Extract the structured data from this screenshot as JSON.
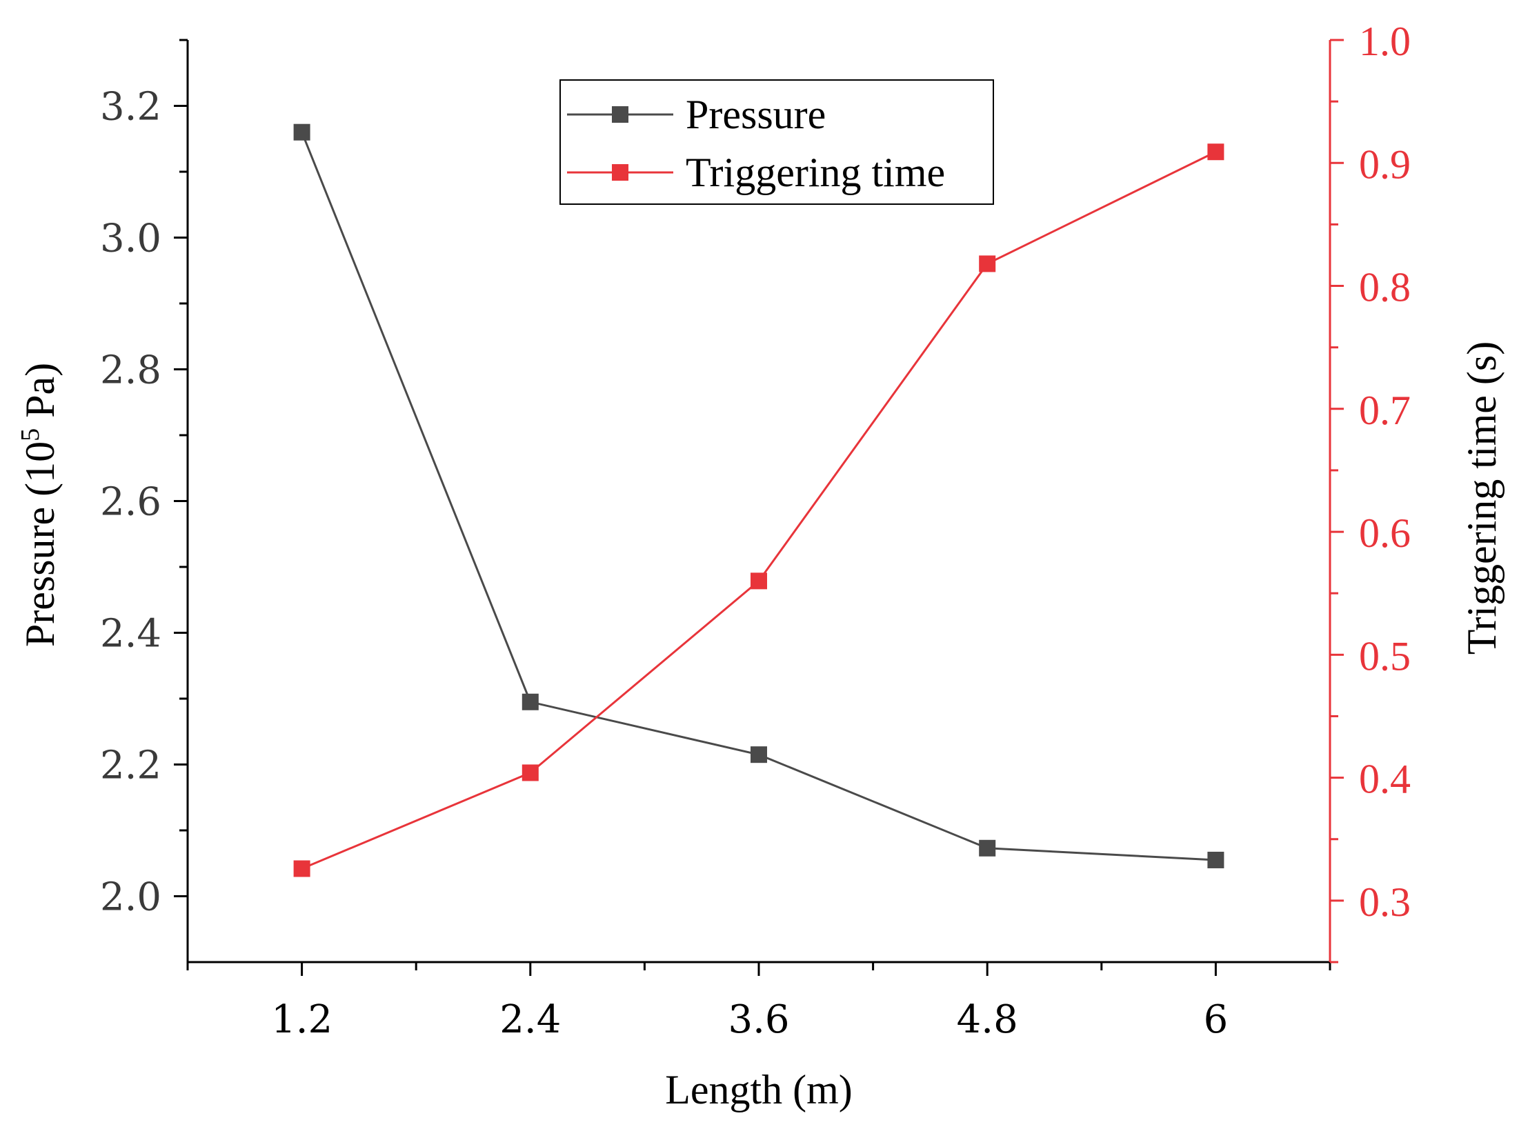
{
  "chart_data": {
    "type": "line",
    "title": "",
    "xlabel": "Length (m)",
    "ylabel_left": {
      "prefix": "Pressure (10",
      "sup": "5",
      "suffix": " Pa)"
    },
    "ylabel_right": "Triggering time (s)",
    "x": [
      1.2,
      2.4,
      3.6,
      4.8,
      6
    ],
    "x_tick_labels": [
      "1.2",
      "2.4",
      "3.6",
      "4.8",
      "6"
    ],
    "xlim": [
      0.6,
      6.6
    ],
    "ylim_left": [
      1.9,
      3.3
    ],
    "ylim_right": [
      0.25,
      1.0
    ],
    "y_left_ticks": [
      2.0,
      2.2,
      2.4,
      2.6,
      2.8,
      3.0,
      3.2
    ],
    "y_left_tick_labels": [
      "2.0",
      "2.2",
      "2.4",
      "2.6",
      "2.8",
      "3.0",
      "3.2"
    ],
    "y_right_ticks": [
      0.3,
      0.4,
      0.5,
      0.6,
      0.7,
      0.8,
      0.9,
      1.0
    ],
    "y_right_tick_labels": [
      "0.3",
      "0.4",
      "0.5",
      "0.6",
      "0.7",
      "0.8",
      "0.9",
      "1.0"
    ],
    "legend_position": "top-center",
    "series": [
      {
        "name": "Pressure",
        "axis": "left",
        "color": "#4a4a4a",
        "values": [
          3.16,
          2.295,
          2.215,
          2.073,
          2.055
        ]
      },
      {
        "name": "Triggering time",
        "axis": "right",
        "color": "#e8343a",
        "values": [
          0.326,
          0.404,
          0.56,
          0.818,
          0.909
        ]
      }
    ]
  }
}
